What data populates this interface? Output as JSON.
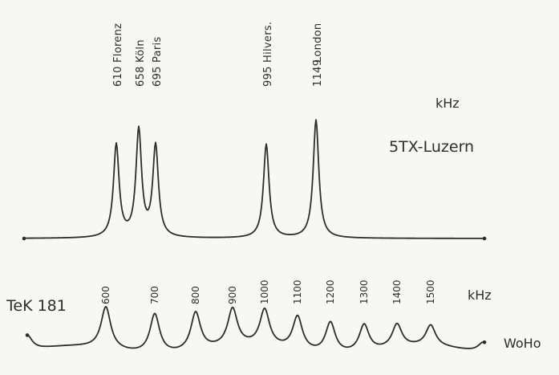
{
  "top_panel": {
    "unit": "kHz",
    "label": "5TX-Luzern",
    "peaks": [
      {
        "freq": 610,
        "freq_label": "610",
        "station": "Florenz",
        "height": 0.72
      },
      {
        "freq": 658,
        "freq_label": "658",
        "station": "Köln",
        "height": 0.83
      },
      {
        "freq": 695,
        "freq_label": "695",
        "station": "Paris",
        "height": 0.71
      },
      {
        "freq": 995,
        "freq_label": "995",
        "station": "Hilvers.",
        "height": 0.73
      },
      {
        "freq": 1149,
        "freq_label": "1149",
        "station": "London",
        "height": 0.92
      }
    ]
  },
  "bottom_panel": {
    "unit": "kHz",
    "left_label": "TeK 181",
    "signature": "WoHo",
    "markers": [
      {
        "freq": 600,
        "label": "600",
        "height": 0.9
      },
      {
        "freq": 700,
        "label": "700",
        "height": 0.85
      },
      {
        "freq": 800,
        "label": "800",
        "height": 0.82
      },
      {
        "freq": 900,
        "label": "900",
        "height": 0.8
      },
      {
        "freq": 1000,
        "label": "1000",
        "height": 0.78
      },
      {
        "freq": 1100,
        "label": "1100",
        "height": 0.72
      },
      {
        "freq": 1200,
        "label": "1200",
        "height": 0.66
      },
      {
        "freq": 1300,
        "label": "1300",
        "height": 0.58
      },
      {
        "freq": 1400,
        "label": "1400",
        "height": 0.5
      },
      {
        "freq": 1500,
        "label": "1500",
        "height": 0.45
      }
    ]
  },
  "colors": {
    "ink": "#2d2d2d",
    "paper": "#f7f7f3"
  }
}
